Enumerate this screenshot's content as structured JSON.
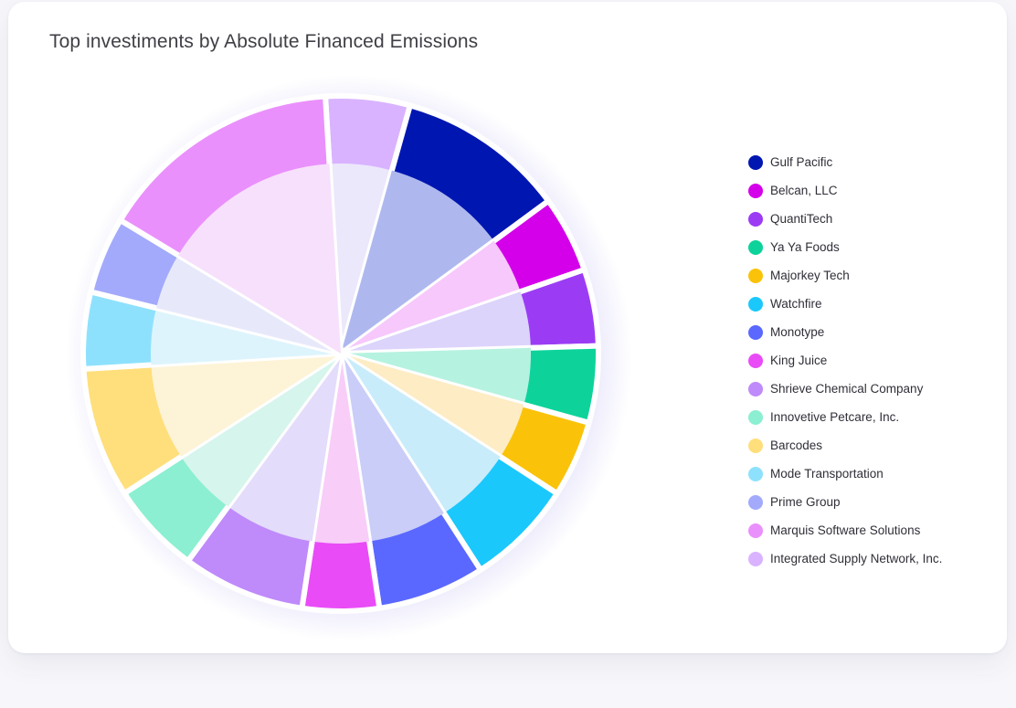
{
  "title": "Top investiments by Absolute Financed Emissions",
  "chart_data": {
    "type": "pie",
    "title": "Top investiments by Absolute Financed Emissions",
    "legend_position": "right",
    "start": "top, clockwise",
    "slices": [
      {
        "name": "Integrated Supply Network, Inc.",
        "value": 5.5,
        "color": "#d9b3ff",
        "inner_color": "#ece8fb"
      },
      {
        "name": "Gulf Pacific",
        "value": 11,
        "color": "#0016b0",
        "inner_color": "#aeb8ef"
      },
      {
        "name": "Belcan, LLC",
        "value": 5,
        "color": "#d400ea",
        "inner_color": "#f7c8fb"
      },
      {
        "name": "QuantiTech",
        "value": 5,
        "color": "#9b3cf4",
        "inner_color": "#dcd4fb"
      },
      {
        "name": "Ya Ya Foods",
        "value": 5,
        "color": "#0dd39b",
        "inner_color": "#b6f2e0"
      },
      {
        "name": "Majorkey Tech",
        "value": 5,
        "color": "#fac30a",
        "inner_color": "#fdecc4"
      },
      {
        "name": "Watchfire",
        "value": 7,
        "color": "#1ac8fc",
        "inner_color": "#c9ecfb"
      },
      {
        "name": "Monotype",
        "value": 7,
        "color": "#5a68ff",
        "inner_color": "#c9cdf8"
      },
      {
        "name": "King Juice",
        "value": 5,
        "color": "#e94bf7",
        "inner_color": "#f8cdf8"
      },
      {
        "name": "Shrieve Chemical Company",
        "value": 8,
        "color": "#bf8afa",
        "inner_color": "#e3dcfb"
      },
      {
        "name": "Innovetive Petcare, Inc.",
        "value": 6,
        "color": "#8cefd1",
        "inner_color": "#d6f5ec"
      },
      {
        "name": "Barcodes",
        "value": 8.5,
        "color": "#ffdf7c",
        "inner_color": "#fdf3d6"
      },
      {
        "name": "Mode Transportation",
        "value": 5,
        "color": "#8ee1fd",
        "inner_color": "#ddf4fc"
      },
      {
        "name": "Prime Group",
        "value": 5,
        "color": "#a3aafc",
        "inner_color": "#e7e9fb"
      },
      {
        "name": "Marquis Software Solutions",
        "value": 16,
        "color": "#ea90fc",
        "inner_color": "#f7e0fb"
      }
    ]
  },
  "legend": [
    {
      "label": "Gulf Pacific",
      "color": "#0016b0"
    },
    {
      "label": "Belcan, LLC",
      "color": "#d400ea"
    },
    {
      "label": "QuantiTech",
      "color": "#9b3cf4"
    },
    {
      "label": "Ya Ya Foods",
      "color": "#0dd39b"
    },
    {
      "label": "Majorkey Tech",
      "color": "#fac30a"
    },
    {
      "label": "Watchfire",
      "color": "#1ac8fc"
    },
    {
      "label": "Monotype",
      "color": "#5a68ff"
    },
    {
      "label": "King Juice",
      "color": "#e94bf7"
    },
    {
      "label": "Shrieve Chemical Company",
      "color": "#bf8afa"
    },
    {
      "label": "Innovetive Petcare, Inc.",
      "color": "#8cefd1"
    },
    {
      "label": "Barcodes",
      "color": "#ffdf7c"
    },
    {
      "label": "Mode Transportation",
      "color": "#8ee1fd"
    },
    {
      "label": "Prime Group",
      "color": "#a3aafc"
    },
    {
      "label": "Marquis Software Solutions",
      "color": "#ea90fc"
    },
    {
      "label": "Integrated Supply Network, Inc.",
      "color": "#d9b3ff"
    }
  ]
}
